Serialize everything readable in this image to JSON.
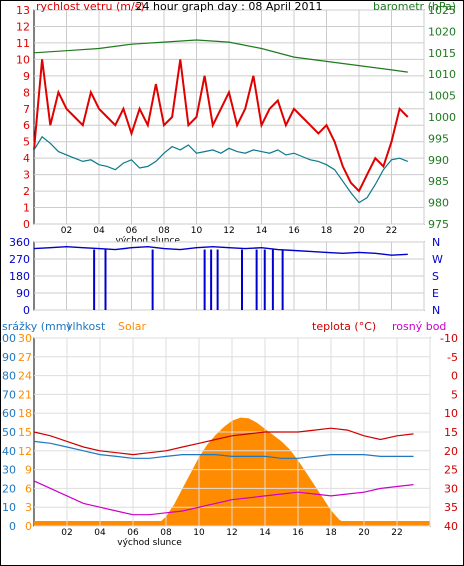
{
  "chart_data": [
    {
      "type": "line",
      "title": "24 hour graph day : 08 April 2011",
      "left_label": "rychlost vetru (m/s)",
      "right_label": "barometr (hPa)",
      "sunrise_label": "východ slunce",
      "x_ticks": [
        "02",
        "04",
        "06",
        "08",
        "10",
        "12",
        "14",
        "16",
        "18",
        "20",
        "22"
      ],
      "ylim_left": [
        0,
        13
      ],
      "ylim_right": [
        975,
        1025
      ],
      "grid": true,
      "colors": {
        "gust": "#e00000",
        "wind": "#0a7a8a",
        "pressure": "#1f7a1f",
        "grid": "#cccccc"
      },
      "series": [
        {
          "name": "",
          "axis": "left",
          "color": "#e00000",
          "x": [
            0,
            0.5,
            1,
            1.5,
            2,
            2.5,
            3,
            3.5,
            4,
            4.5,
            5,
            5.5,
            6,
            6.5,
            7,
            7.5,
            8,
            8.5,
            9,
            9.5,
            10,
            10.5,
            11,
            11.5,
            12,
            12.5,
            13,
            13.5,
            14,
            14.5,
            15,
            15.5,
            16,
            16.5,
            17,
            17.5,
            18,
            18.5,
            19,
            19.5,
            20,
            20.5,
            21,
            21.5,
            22,
            22.5,
            23
          ],
          "values": [
            4.5,
            10,
            6,
            8,
            7,
            6.5,
            6,
            8,
            7,
            6.5,
            6,
            7,
            5.5,
            7,
            6,
            8.5,
            6,
            6.5,
            10,
            6,
            6.5,
            9,
            6,
            7,
            8,
            6,
            7,
            9,
            6,
            7,
            7.5,
            6,
            7,
            6.5,
            6,
            5.5,
            6,
            5,
            3.5,
            2.5,
            2,
            3,
            4,
            3.5,
            5,
            7,
            6.5
          ]
        },
        {
          "name": "",
          "axis": "left",
          "color": "#0a7a8a",
          "x": [
            0,
            0.5,
            1,
            1.5,
            2,
            2.5,
            3,
            3.5,
            4,
            4.5,
            5,
            5.5,
            6,
            6.5,
            7,
            7.5,
            8,
            8.5,
            9,
            9.5,
            10,
            10.5,
            11,
            11.5,
            12,
            12.5,
            13,
            13.5,
            14,
            14.5,
            15,
            15.5,
            16,
            16.5,
            17,
            17.5,
            18,
            18.5,
            19,
            19.5,
            20,
            20.5,
            21,
            21.5,
            22,
            22.5,
            23
          ],
          "values": [
            4.5,
            5.3,
            4.9,
            4.4,
            4.2,
            4.0,
            3.8,
            3.9,
            3.6,
            3.5,
            3.3,
            3.7,
            3.9,
            3.4,
            3.5,
            3.8,
            4.3,
            4.7,
            4.5,
            4.8,
            4.3,
            4.4,
            4.5,
            4.3,
            4.6,
            4.4,
            4.3,
            4.5,
            4.4,
            4.3,
            4.5,
            4.2,
            4.3,
            4.1,
            3.9,
            3.8,
            3.6,
            3.3,
            2.6,
            1.9,
            1.3,
            1.6,
            2.4,
            3.3,
            3.9,
            4.0,
            3.8
          ]
        },
        {
          "name": "",
          "axis": "right",
          "color": "#1f7a1f",
          "x": [
            0,
            2,
            4,
            6,
            8,
            10,
            12,
            14,
            16,
            18,
            20,
            22,
            23
          ],
          "values": [
            1015,
            1015.5,
            1016,
            1017,
            1017.5,
            1018,
            1017.5,
            1016,
            1014,
            1013,
            1012,
            1011,
            1010.5
          ]
        }
      ],
      "left_ticks": [
        "0",
        "1",
        "2",
        "3",
        "4",
        "5",
        "6",
        "7",
        "8",
        "9",
        "10",
        "11",
        "12",
        "13"
      ],
      "right_ticks": [
        "975",
        "980",
        "985",
        "990",
        "995",
        "1000",
        "1005",
        "1010",
        "1015",
        "1020",
        "1025"
      ]
    },
    {
      "type": "line",
      "title": "",
      "x_ticks": [
        "02",
        "04",
        "06",
        "08",
        "10",
        "12",
        "14",
        "16",
        "18",
        "20",
        "22"
      ],
      "left_ticks": [
        "360",
        "270",
        "180",
        "90",
        "0"
      ],
      "right_ticks": [
        "N",
        "W",
        "S",
        "E",
        "N"
      ],
      "ylim": [
        0,
        360
      ],
      "series": [
        {
          "name": "",
          "color": "#0000cc",
          "x": [
            0,
            1,
            2,
            3,
            4,
            5,
            6,
            7,
            8,
            9,
            10,
            11,
            12,
            13,
            14,
            15,
            16,
            17,
            18,
            19,
            20,
            21,
            22,
            23
          ],
          "values": [
            325,
            330,
            335,
            330,
            325,
            320,
            330,
            335,
            325,
            320,
            330,
            335,
            330,
            325,
            330,
            320,
            315,
            310,
            305,
            300,
            305,
            300,
            290,
            295
          ]
        }
      ],
      "drops_to_zero_at": [
        3.7,
        4.4,
        7.3,
        10.5,
        10.9,
        11.3,
        12.8,
        13.7,
        14.2,
        14.7,
        15.3
      ]
    },
    {
      "type": "area",
      "title": "",
      "legend": [
        "srážky (mm)",
        "vlhkost",
        "Solar",
        "teplota (°C)",
        "rosný bod"
      ],
      "sunrise_label": "východ slunce",
      "x_ticks": [
        "02",
        "04",
        "06",
        "08",
        "10",
        "12",
        "14",
        "16",
        "18",
        "20",
        "22"
      ],
      "ticks_rain": [
        "0",
        "5",
        "10",
        "15",
        "20",
        "25",
        "30"
      ],
      "ticks_humidity": [
        "0",
        "10",
        "20",
        "30",
        "40",
        "50",
        "60",
        "70",
        "80",
        "90",
        "100"
      ],
      "ticks_solar": [
        "0",
        "3",
        "6",
        "9",
        "12",
        "15",
        "18",
        "21",
        "24",
        "27",
        "30"
      ],
      "ticks_temp": [
        "-10",
        "-5",
        "0",
        "5",
        "10",
        "15",
        "20",
        "25",
        "30",
        "35",
        "40"
      ],
      "colors": {
        "rain": "#1f77c0",
        "humidity": "#1f77c0",
        "solar": "#ff8c00",
        "temp": "#cc0000",
        "dew": "#cc00cc"
      },
      "series": [
        {
          "name": "Solar",
          "axis": "solar",
          "x": [
            0,
            1,
            2,
            3,
            4,
            5,
            6,
            7,
            7.5,
            8,
            8.5,
            9,
            9.5,
            10,
            10.5,
            11,
            11.5,
            12,
            12.5,
            13,
            13.5,
            14,
            14.5,
            15,
            15.5,
            16,
            16.5,
            17,
            17.5,
            18,
            18.5,
            19,
            20,
            21,
            22,
            23
          ],
          "values": [
            0,
            0,
            0,
            0,
            0,
            0,
            0,
            0,
            0.3,
            1.5,
            3.5,
            6,
            8.5,
            11,
            13,
            14.5,
            15.8,
            16.8,
            17.3,
            17.2,
            16.5,
            15.5,
            14.5,
            13.5,
            12.2,
            10.5,
            8.5,
            6.5,
            4.5,
            2.5,
            1,
            0.3,
            0,
            0,
            0,
            0
          ]
        },
        {
          "name": "vlhkost",
          "axis": "humidity",
          "x": [
            0,
            1,
            2,
            3,
            4,
            5,
            6,
            7,
            8,
            9,
            10,
            11,
            12,
            13,
            14,
            15,
            16,
            17,
            18,
            19,
            20,
            21,
            22,
            23
          ],
          "values": [
            45,
            44,
            42,
            40,
            38,
            37,
            36,
            36,
            37,
            38,
            38,
            38,
            37,
            37,
            37,
            36,
            36,
            37,
            38,
            38,
            38,
            37,
            37,
            37
          ]
        },
        {
          "name": "teplota (°C)",
          "axis": "temp",
          "x": [
            0,
            1,
            2,
            3,
            4,
            5,
            6,
            7,
            8,
            9,
            10,
            11,
            12,
            13,
            14,
            15,
            16,
            17,
            18,
            19,
            20,
            21,
            22,
            23
          ],
          "values": [
            15,
            14,
            12.5,
            11,
            10,
            9.5,
            9,
            9.5,
            10,
            11,
            12,
            13,
            14,
            14.5,
            15,
            15,
            15,
            15.5,
            16,
            15.5,
            14,
            13,
            14,
            14.5
          ]
        },
        {
          "name": "rosný bod",
          "axis": "temp",
          "x": [
            0,
            1,
            2,
            3,
            4,
            5,
            6,
            7,
            8,
            9,
            10,
            11,
            12,
            13,
            14,
            15,
            16,
            17,
            18,
            19,
            20,
            21,
            22,
            23
          ],
          "values": [
            2,
            0,
            -2,
            -4,
            -5,
            -6,
            -7,
            -7,
            -6.5,
            -6,
            -5,
            -4,
            -3,
            -2.5,
            -2,
            -1.5,
            -1,
            -1.5,
            -2,
            -1.5,
            -1,
            0,
            0.5,
            1
          ]
        },
        {
          "name": "srážky (mm)",
          "axis": "rain",
          "x": [
            0,
            23
          ],
          "values": [
            0,
            0
          ]
        }
      ]
    }
  ]
}
